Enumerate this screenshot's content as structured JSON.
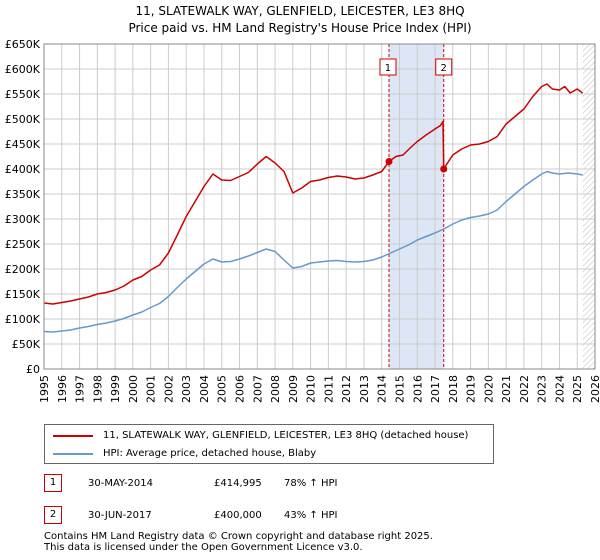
{
  "header": {
    "title": "11, SLATEWALK WAY, GLENFIELD, LEICESTER, LE3 8HQ",
    "subtitle": "Price paid vs. HM Land Registry's House Price Index (HPI)"
  },
  "colors": {
    "property": "#cc0000",
    "hpi": "#6699cc",
    "shade": "#dce6f5",
    "grid": "#cccccc"
  },
  "chart_data": {
    "type": "line",
    "title": "11, SLATEWALK WAY, GLENFIELD, LEICESTER, LE3 8HQ",
    "xlim": [
      1995,
      2026
    ],
    "ylim": [
      0,
      650000
    ],
    "y_ticks": [
      0,
      50000,
      100000,
      150000,
      200000,
      250000,
      300000,
      350000,
      400000,
      450000,
      500000,
      550000,
      600000,
      650000
    ],
    "y_tick_labels": [
      "£0",
      "£50K",
      "£100K",
      "£150K",
      "£200K",
      "£250K",
      "£300K",
      "£350K",
      "£400K",
      "£450K",
      "£500K",
      "£550K",
      "£600K",
      "£650K"
    ],
    "x_ticks": [
      1995,
      1996,
      1997,
      1998,
      1999,
      2000,
      2001,
      2002,
      2003,
      2004,
      2005,
      2006,
      2007,
      2008,
      2009,
      2010,
      2011,
      2012,
      2013,
      2014,
      2015,
      2016,
      2017,
      2018,
      2019,
      2020,
      2021,
      2022,
      2023,
      2024,
      2025,
      2026
    ],
    "x_tick_labels": [
      "1995",
      "1996",
      "1997",
      "1998",
      "1999",
      "2000",
      "2001",
      "2002",
      "2003",
      "2004",
      "2005",
      "2006",
      "2007",
      "2008",
      "2009",
      "2010",
      "2011",
      "2012",
      "2013",
      "2014",
      "2015",
      "2016",
      "2017",
      "2018",
      "2019",
      "2020",
      "2021",
      "2022",
      "2023",
      "2024",
      "2025",
      "2026"
    ],
    "shaded_range": [
      2014.41,
      2017.49
    ],
    "hatch_start": 2025.3,
    "series": [
      {
        "name": "11, SLATEWALK WAY, GLENFIELD, LEICESTER, LE3 8HQ (detached house)",
        "x": [
          1995,
          1995.5,
          1996,
          1996.5,
          1997,
          1997.5,
          1998,
          1998.5,
          1999,
          1999.5,
          2000,
          2000.5,
          2001,
          2001.5,
          2002,
          2002.5,
          2003,
          2003.5,
          2004,
          2004.5,
          2005,
          2005.5,
          2006,
          2006.5,
          2007,
          2007.5,
          2008,
          2008.5,
          2009,
          2009.5,
          2010,
          2010.5,
          2011,
          2011.5,
          2012,
          2012.5,
          2013,
          2013.5,
          2014,
          2014.41,
          2014.8,
          2015.2,
          2015.6,
          2016,
          2016.5,
          2017,
          2017.3,
          2017.45,
          2017.49,
          2017.7,
          2018,
          2018.5,
          2019,
          2019.5,
          2020,
          2020.5,
          2021,
          2021.5,
          2022,
          2022.5,
          2023,
          2023.3,
          2023.6,
          2024,
          2024.3,
          2024.6,
          2025,
          2025.3
        ],
        "values": [
          132000,
          130000,
          133000,
          136000,
          140000,
          144000,
          150000,
          153000,
          158000,
          166000,
          178000,
          185000,
          198000,
          208000,
          232000,
          268000,
          305000,
          335000,
          365000,
          390000,
          378000,
          377000,
          385000,
          393000,
          410000,
          425000,
          412000,
          395000,
          352000,
          362000,
          375000,
          378000,
          383000,
          386000,
          384000,
          380000,
          382000,
          388000,
          395000,
          414995,
          425000,
          428000,
          442000,
          455000,
          468000,
          480000,
          487000,
          495000,
          400000,
          412000,
          428000,
          440000,
          448000,
          450000,
          455000,
          465000,
          490000,
          505000,
          520000,
          545000,
          565000,
          570000,
          560000,
          558000,
          565000,
          552000,
          560000,
          552000
        ]
      },
      {
        "name": "HPI: Average price, detached house, Blaby",
        "x": [
          1995,
          1995.5,
          1996,
          1996.5,
          1997,
          1997.5,
          1998,
          1998.5,
          1999,
          1999.5,
          2000,
          2000.5,
          2001,
          2001.5,
          2002,
          2002.5,
          2003,
          2003.5,
          2004,
          2004.5,
          2005,
          2005.5,
          2006,
          2006.5,
          2007,
          2007.5,
          2008,
          2008.5,
          2009,
          2009.5,
          2010,
          2010.5,
          2011,
          2011.5,
          2012,
          2012.5,
          2013,
          2013.5,
          2014,
          2014.5,
          2015,
          2015.5,
          2016,
          2016.5,
          2017,
          2017.5,
          2018,
          2018.5,
          2019,
          2019.5,
          2020,
          2020.5,
          2021,
          2021.5,
          2022,
          2022.5,
          2023,
          2023.3,
          2023.6,
          2024,
          2024.5,
          2025,
          2025.3
        ],
        "values": [
          75000,
          74000,
          76000,
          78000,
          82000,
          85000,
          89000,
          92000,
          96000,
          101000,
          108000,
          114000,
          123000,
          131000,
          145000,
          163000,
          180000,
          195000,
          210000,
          220000,
          214000,
          215000,
          220000,
          226000,
          233000,
          240000,
          235000,
          218000,
          202000,
          205000,
          212000,
          214000,
          216000,
          217000,
          215000,
          214000,
          215000,
          218000,
          224000,
          232000,
          240000,
          248000,
          258000,
          265000,
          272000,
          280000,
          290000,
          298000,
          303000,
          306000,
          310000,
          318000,
          335000,
          350000,
          365000,
          378000,
          390000,
          395000,
          392000,
          390000,
          392000,
          390000,
          388000
        ]
      }
    ],
    "markers": [
      {
        "label": "1",
        "x": 2014.41,
        "y": 414995
      },
      {
        "label": "2",
        "x": 2017.49,
        "y": 400000
      }
    ]
  },
  "legend": {
    "property_label": "11, SLATEWALK WAY, GLENFIELD, LEICESTER, LE3 8HQ (detached house)",
    "hpi_label": "HPI: Average price, detached house, Blaby"
  },
  "transactions": [
    {
      "num": "1",
      "date": "30-MAY-2014",
      "price": "£414,995",
      "hpi": "78% ↑ HPI"
    },
    {
      "num": "2",
      "date": "30-JUN-2017",
      "price": "£400,000",
      "hpi": "43% ↑ HPI"
    }
  ],
  "footer": {
    "line1": "Contains HM Land Registry data © Crown copyright and database right 2025.",
    "line2": "This data is licensed under the Open Government Licence v3.0."
  }
}
